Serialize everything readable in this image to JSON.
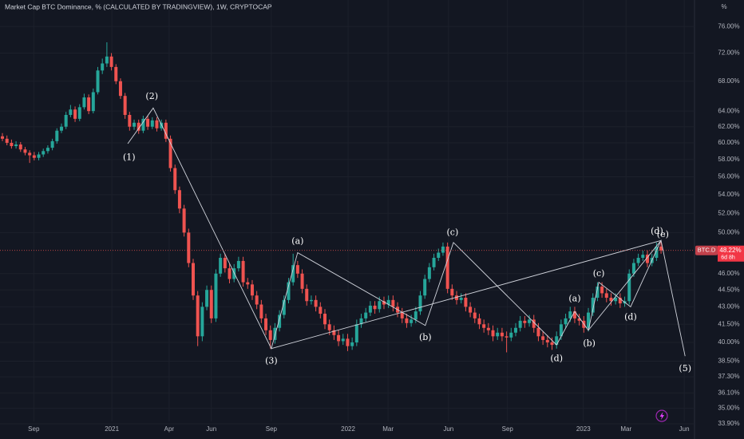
{
  "chart_data": {
    "type": "candlestick",
    "title": "Market Cap BTC Dominance, % (CALCULATED BY TRADINGVIEW), 1W, CRYPTOCAP",
    "y_unit": "%",
    "log_scale": true,
    "grid": true,
    "up_color": "#26a69a",
    "down_color": "#ef5350",
    "xlim": [
      -0.53,
      152.37
    ],
    "xticks": [
      {
        "value": 6.9,
        "label": "Sep"
      },
      {
        "value": 24.1,
        "label": "2021"
      },
      {
        "value": 36.7,
        "label": "Apr"
      },
      {
        "value": 46.0,
        "label": "Jun"
      },
      {
        "value": 59.2,
        "label": "Sep"
      },
      {
        "value": 76.1,
        "label": "2022"
      },
      {
        "value": 84.9,
        "label": "Mar"
      },
      {
        "value": 98.2,
        "label": "Jun"
      },
      {
        "value": 111.2,
        "label": "Sep"
      },
      {
        "value": 127.9,
        "label": "2023"
      },
      {
        "value": 137.3,
        "label": "Mar"
      },
      {
        "value": 150.1,
        "label": "Jun"
      }
    ],
    "ylim": [
      33.41,
      80.2
    ],
    "yticks": [
      {
        "value": 76,
        "label": "76.00%"
      },
      {
        "value": 72,
        "label": "72.00%"
      },
      {
        "value": 68,
        "label": "68.00%"
      },
      {
        "value": 64,
        "label": "64.00%"
      },
      {
        "value": 62,
        "label": "62.00%"
      },
      {
        "value": 60,
        "label": "60.00%"
      },
      {
        "value": 58,
        "label": "58.00%"
      },
      {
        "value": 56,
        "label": "56.00%"
      },
      {
        "value": 54,
        "label": "54.00%"
      },
      {
        "value": 52,
        "label": "52.00%"
      },
      {
        "value": 50,
        "label": "50.00%"
      },
      {
        "value": 46,
        "label": "46.00%"
      },
      {
        "value": 44.5,
        "label": "44.50%"
      },
      {
        "value": 43,
        "label": "43.00%"
      },
      {
        "value": 41.5,
        "label": "41.50%"
      },
      {
        "value": 40,
        "label": "40.00%"
      },
      {
        "value": 38.5,
        "label": "38.50%"
      },
      {
        "value": 37.3,
        "label": "37.30%"
      },
      {
        "value": 36.1,
        "label": "36.10%"
      },
      {
        "value": 35,
        "label": "35.00%"
      },
      {
        "value": 33.9,
        "label": "33.90%"
      }
    ],
    "ticker": "BTC.D",
    "last_price": 48.22,
    "last_price_label": "48.22%",
    "countdown": "6d 8h",
    "ohlc": [
      [
        60.8,
        61.2,
        60.2,
        60.5
      ],
      [
        60.5,
        60.9,
        59.7,
        60.0
      ],
      [
        60.0,
        60.4,
        59.3,
        59.6
      ],
      [
        59.6,
        60.2,
        59.3,
        59.8
      ],
      [
        59.8,
        60.1,
        58.9,
        59.2
      ],
      [
        59.2,
        59.5,
        58.5,
        58.8
      ],
      [
        58.8,
        59.1,
        57.6,
        58.5
      ],
      [
        58.5,
        58.9,
        57.9,
        58.2
      ],
      [
        58.2,
        58.9,
        57.9,
        58.6
      ],
      [
        58.6,
        59.3,
        58.3,
        59.0
      ],
      [
        59.0,
        59.7,
        58.7,
        59.4
      ],
      [
        59.4,
        60.5,
        59.1,
        60.2
      ],
      [
        60.2,
        61.8,
        59.9,
        61.5
      ],
      [
        61.5,
        62.4,
        61.2,
        62.0
      ],
      [
        62.0,
        63.9,
        61.7,
        63.5
      ],
      [
        63.5,
        64.8,
        63.2,
        64.2
      ],
      [
        64.2,
        64.6,
        62.6,
        63.0
      ],
      [
        63.0,
        64.9,
        62.7,
        64.5
      ],
      [
        64.5,
        66.3,
        64.2,
        65.8
      ],
      [
        65.8,
        66.2,
        63.6,
        64.0
      ],
      [
        64.0,
        67.0,
        63.7,
        66.5
      ],
      [
        66.5,
        70.0,
        66.2,
        69.5
      ],
      [
        69.5,
        71.2,
        69.0,
        70.5
      ],
      [
        70.5,
        73.6,
        70.0,
        71.5
      ],
      [
        71.5,
        72.0,
        69.5,
        70.0
      ],
      [
        70.0,
        70.4,
        67.6,
        68.0
      ],
      [
        68.0,
        68.4,
        65.6,
        66.0
      ],
      [
        66.0,
        66.4,
        63.0,
        63.5
      ],
      [
        63.5,
        63.9,
        61.5,
        62.0
      ],
      [
        62.0,
        62.9,
        61.6,
        62.5
      ],
      [
        62.5,
        62.9,
        61.1,
        61.5
      ],
      [
        61.5,
        63.4,
        61.2,
        63.0
      ],
      [
        63.0,
        63.4,
        61.6,
        62.0
      ],
      [
        62.0,
        63.2,
        61.7,
        62.8
      ],
      [
        62.8,
        63.2,
        61.4,
        61.8
      ],
      [
        61.8,
        62.9,
        61.5,
        62.5
      ],
      [
        62.5,
        62.9,
        60.1,
        60.5
      ],
      [
        60.5,
        60.9,
        56.6,
        57.0
      ],
      [
        57.0,
        57.4,
        54.1,
        54.5
      ],
      [
        54.5,
        54.9,
        52.0,
        52.5
      ],
      [
        52.5,
        52.9,
        49.6,
        50.0
      ],
      [
        50.0,
        50.4,
        46.6,
        47.0
      ],
      [
        47.0,
        47.4,
        43.6,
        44.0
      ],
      [
        44.0,
        44.4,
        39.7,
        40.5
      ],
      [
        40.5,
        43.4,
        40.1,
        43.0
      ],
      [
        43.0,
        44.9,
        42.7,
        44.5
      ],
      [
        44.5,
        44.9,
        41.6,
        42.0
      ],
      [
        42.0,
        46.4,
        41.7,
        46.0
      ],
      [
        46.0,
        47.9,
        45.7,
        47.5
      ],
      [
        47.5,
        47.9,
        46.1,
        46.5
      ],
      [
        46.5,
        46.9,
        45.1,
        45.5
      ],
      [
        45.5,
        46.9,
        45.2,
        46.5
      ],
      [
        46.5,
        47.6,
        46.2,
        47.2
      ],
      [
        47.2,
        47.6,
        44.8,
        45.2
      ],
      [
        45.2,
        45.6,
        44.6,
        45.0
      ],
      [
        45.0,
        45.4,
        43.6,
        44.0
      ],
      [
        44.0,
        44.4,
        42.8,
        43.2
      ],
      [
        43.2,
        43.6,
        41.6,
        42.0
      ],
      [
        42.0,
        42.4,
        40.6,
        41.0
      ],
      [
        41.0,
        41.4,
        39.5,
        40.2
      ],
      [
        40.2,
        41.6,
        39.9,
        41.2
      ],
      [
        41.2,
        42.7,
        40.9,
        42.3
      ],
      [
        42.3,
        44.0,
        42.0,
        43.6
      ],
      [
        43.6,
        45.6,
        43.3,
        45.2
      ],
      [
        45.2,
        47.9,
        44.9,
        46.8
      ],
      [
        46.8,
        47.2,
        45.6,
        46.0
      ],
      [
        46.0,
        46.4,
        44.2,
        44.6
      ],
      [
        44.6,
        45.0,
        43.1,
        43.5
      ],
      [
        43.5,
        44.0,
        43.2,
        43.6
      ],
      [
        43.6,
        44.0,
        42.6,
        43.0
      ],
      [
        43.0,
        43.4,
        42.0,
        42.4
      ],
      [
        42.4,
        42.8,
        41.1,
        41.5
      ],
      [
        41.5,
        41.9,
        40.6,
        41.0
      ],
      [
        41.0,
        41.4,
        40.2,
        40.6
      ],
      [
        40.6,
        41.0,
        39.7,
        40.1
      ],
      [
        40.1,
        40.7,
        39.8,
        40.3
      ],
      [
        40.3,
        40.7,
        39.3,
        39.7
      ],
      [
        39.7,
        40.4,
        39.4,
        40.0
      ],
      [
        40.0,
        41.9,
        39.7,
        41.5
      ],
      [
        41.5,
        42.4,
        41.2,
        42.0
      ],
      [
        42.0,
        42.9,
        41.7,
        42.5
      ],
      [
        42.5,
        43.5,
        42.2,
        43.1
      ],
      [
        43.1,
        43.5,
        42.4,
        42.8
      ],
      [
        42.8,
        43.9,
        42.5,
        43.5
      ],
      [
        43.5,
        43.9,
        42.8,
        43.2
      ],
      [
        43.2,
        44.0,
        42.9,
        43.6
      ],
      [
        43.6,
        44.0,
        42.6,
        43.0
      ],
      [
        43.0,
        43.4,
        42.1,
        42.5
      ],
      [
        42.5,
        42.9,
        41.6,
        42.0
      ],
      [
        42.0,
        42.4,
        41.2,
        41.6
      ],
      [
        41.6,
        42.3,
        41.3,
        41.9
      ],
      [
        41.9,
        43.0,
        41.6,
        42.6
      ],
      [
        42.6,
        44.4,
        42.3,
        44.0
      ],
      [
        44.0,
        45.9,
        43.7,
        45.5
      ],
      [
        45.5,
        47.0,
        45.2,
        46.6
      ],
      [
        46.6,
        47.9,
        46.3,
        47.5
      ],
      [
        47.5,
        48.4,
        47.2,
        48.0
      ],
      [
        48.0,
        49.0,
        47.7,
        48.6
      ],
      [
        48.6,
        49.0,
        44.2,
        44.6
      ],
      [
        44.6,
        45.0,
        43.6,
        44.0
      ],
      [
        44.0,
        44.4,
        43.2,
        43.6
      ],
      [
        43.6,
        44.2,
        43.3,
        43.8
      ],
      [
        43.8,
        44.2,
        42.6,
        43.0
      ],
      [
        43.0,
        43.4,
        42.1,
        42.5
      ],
      [
        42.5,
        42.9,
        41.6,
        42.0
      ],
      [
        42.0,
        42.4,
        41.1,
        41.5
      ],
      [
        41.5,
        41.9,
        40.8,
        41.2
      ],
      [
        41.2,
        41.6,
        40.6,
        41.0
      ],
      [
        41.0,
        41.4,
        40.1,
        40.5
      ],
      [
        40.5,
        41.2,
        40.2,
        40.8
      ],
      [
        40.8,
        41.2,
        40.1,
        40.5
      ],
      [
        40.5,
        40.9,
        39.2,
        40.4
      ],
      [
        40.4,
        41.2,
        40.1,
        40.8
      ],
      [
        40.8,
        41.6,
        40.5,
        41.2
      ],
      [
        41.2,
        42.2,
        40.9,
        41.8
      ],
      [
        41.8,
        42.2,
        41.2,
        41.6
      ],
      [
        41.6,
        42.3,
        41.3,
        41.9
      ],
      [
        41.9,
        42.3,
        40.8,
        41.2
      ],
      [
        41.2,
        41.6,
        40.1,
        40.5
      ],
      [
        40.5,
        40.9,
        39.8,
        40.2
      ],
      [
        40.2,
        40.6,
        39.6,
        40.0
      ],
      [
        40.0,
        40.4,
        39.4,
        39.8
      ],
      [
        39.8,
        40.9,
        39.5,
        40.5
      ],
      [
        40.5,
        41.9,
        40.2,
        41.5
      ],
      [
        41.5,
        42.4,
        41.2,
        42.0
      ],
      [
        42.0,
        43.0,
        41.7,
        42.6
      ],
      [
        42.6,
        43.0,
        41.6,
        42.0
      ],
      [
        42.0,
        42.4,
        41.4,
        41.8
      ],
      [
        41.8,
        42.2,
        40.8,
        41.2
      ],
      [
        41.2,
        42.9,
        40.9,
        42.5
      ],
      [
        42.5,
        44.2,
        42.2,
        43.8
      ],
      [
        43.8,
        45.2,
        43.5,
        44.8
      ],
      [
        44.8,
        45.2,
        43.8,
        44.2
      ],
      [
        44.2,
        44.6,
        43.4,
        43.8
      ],
      [
        43.8,
        44.2,
        43.1,
        43.5
      ],
      [
        43.5,
        44.2,
        43.2,
        43.8
      ],
      [
        43.8,
        44.2,
        42.9,
        43.3
      ],
      [
        43.3,
        43.9,
        43.0,
        43.5
      ],
      [
        43.5,
        46.4,
        43.2,
        46.0
      ],
      [
        46.0,
        47.4,
        45.7,
        47.0
      ],
      [
        47.0,
        47.9,
        46.7,
        47.5
      ],
      [
        47.5,
        48.2,
        47.2,
        47.8
      ],
      [
        47.8,
        48.2,
        46.6,
        47.0
      ],
      [
        47.0,
        47.9,
        46.7,
        47.5
      ],
      [
        47.5,
        49.0,
        47.2,
        48.6
      ],
      [
        48.6,
        49.2,
        47.9,
        48.22
      ]
    ],
    "drawings": [
      {
        "points": [
          [
            27.6,
            59.9
          ],
          [
            33.2,
            64.4
          ],
          [
            59.2,
            39.5
          ],
          [
            65.0,
            48.0
          ],
          [
            93.1,
            41.4
          ],
          [
            99.3,
            49.0
          ],
          [
            122.0,
            39.8
          ],
          [
            126.0,
            42.6
          ],
          [
            129.0,
            41.0
          ],
          [
            131.3,
            45.2
          ],
          [
            138.3,
            43.0
          ],
          [
            145.0,
            49.2
          ],
          [
            150.3,
            38.9
          ]
        ]
      },
      {
        "points": [
          [
            59.2,
            39.5
          ],
          [
            145.0,
            49.2
          ]
        ]
      },
      {
        "points": [
          [
            129.0,
            41.0
          ],
          [
            145.0,
            49.2
          ]
        ]
      }
    ],
    "labels": [
      {
        "text": "(1)",
        "x": 27.9,
        "y": 58.2
      },
      {
        "text": "(2)",
        "x": 32.9,
        "y": 65.9
      },
      {
        "text": "(3)",
        "x": 59.2,
        "y": 38.5
      },
      {
        "text": "(a)",
        "x": 65.0,
        "y": 49.1
      },
      {
        "text": "(b)",
        "x": 93.1,
        "y": 40.4
      },
      {
        "text": "(c)",
        "x": 99.1,
        "y": 50.0
      },
      {
        "text": "(d)",
        "x": 122.0,
        "y": 38.7
      },
      {
        "text": "(a)",
        "x": 126.0,
        "y": 43.7
      },
      {
        "text": "(b)",
        "x": 129.2,
        "y": 39.9
      },
      {
        "text": "(c)",
        "x": 131.3,
        "y": 46.0
      },
      {
        "text": "(d)",
        "x": 138.3,
        "y": 42.1
      },
      {
        "text": "(d)",
        "x": 144.1,
        "y": 50.1
      },
      {
        "text": "(e)",
        "x": 145.4,
        "y": 49.8
      },
      {
        "text": "(5)",
        "x": 150.3,
        "y": 37.9
      }
    ]
  }
}
